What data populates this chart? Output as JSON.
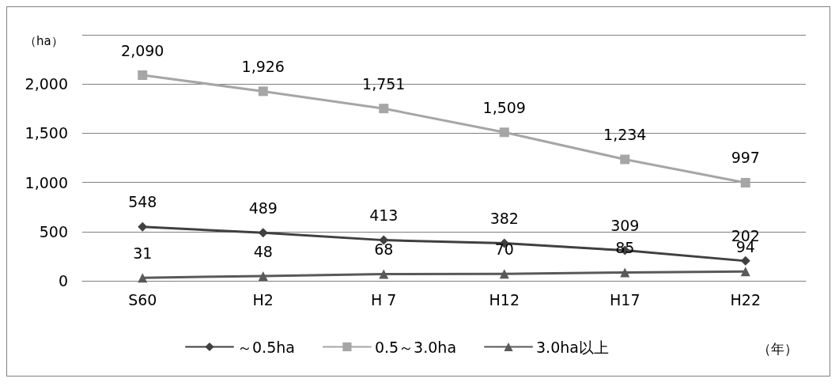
{
  "chart_data": {
    "type": "line",
    "ylabel": "（ha）",
    "xlabel": "（年）",
    "categories": [
      "S60",
      "H2",
      "H 7",
      "H12",
      "H17",
      "H22"
    ],
    "series": [
      {
        "name": "～0.5ha",
        "color": "#404040",
        "marker": "diamond",
        "values": [
          548,
          489,
          413,
          382,
          309,
          202
        ],
        "value_labels": [
          "548",
          "489",
          "413",
          "382",
          "309",
          "202"
        ]
      },
      {
        "name": "0.5～3.0ha",
        "color": "#a6a6a6",
        "marker": "square",
        "values": [
          2090,
          1926,
          1751,
          1509,
          1234,
          997
        ],
        "value_labels": [
          "2,090",
          "1,926",
          "1,751",
          "1,509",
          "1,234",
          "997"
        ]
      },
      {
        "name": "3.0ha以上",
        "color": "#595959",
        "marker": "triangle",
        "values": [
          31,
          48,
          68,
          70,
          85,
          94
        ],
        "value_labels": [
          "31",
          "48",
          "68",
          "70",
          "85",
          "94"
        ]
      }
    ],
    "ylim": [
      0,
      2500
    ],
    "yticks": [
      0,
      500,
      {
        "value": 1000,
        "label": "1,000"
      },
      {
        "value": 1500,
        "label": "1,500"
      },
      {
        "value": 2000,
        "label": "2,000"
      },
      {
        "value": 2500,
        "label": null
      }
    ],
    "grid": "y",
    "legend": "bottom"
  }
}
